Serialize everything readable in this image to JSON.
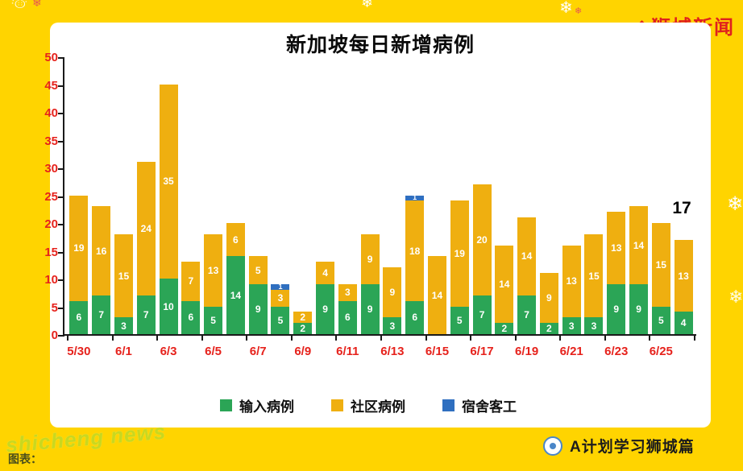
{
  "colors": {
    "background": "#FFD400",
    "panel": "#FFFFFF",
    "axis_labels": "#E6221C",
    "brand": "#E0201E",
    "annotation": "#000000"
  },
  "brand": {
    "name": "狮城新闻"
  },
  "chart_data": {
    "type": "bar",
    "stacked": true,
    "title": "新加坡每日新增病例",
    "ylim": [
      0,
      50
    ],
    "ytick_step": 5,
    "gridlines": false,
    "legend_position": "bottom",
    "x_tick_labels": [
      "5/30",
      "",
      "6/1",
      "",
      "6/3",
      "",
      "6/5",
      "",
      "6/7",
      "",
      "6/9",
      "",
      "6/11",
      "",
      "6/13",
      "",
      "6/15",
      "",
      "6/17",
      "",
      "6/19",
      "",
      "6/21",
      "",
      "6/23",
      "",
      "6/25",
      ""
    ],
    "series": [
      {
        "name": "输入病例",
        "color": "#2BA556",
        "values": [
          6,
          7,
          3,
          7,
          10,
          6,
          5,
          14,
          9,
          5,
          2,
          9,
          6,
          9,
          3,
          6,
          0,
          5,
          7,
          2,
          7,
          2,
          3,
          3,
          9,
          9,
          5,
          4
        ]
      },
      {
        "name": "社区病例",
        "color": "#EFAF10",
        "values": [
          19,
          16,
          15,
          24,
          35,
          7,
          13,
          6,
          5,
          3,
          2,
          4,
          3,
          9,
          9,
          18,
          14,
          19,
          20,
          14,
          14,
          9,
          13,
          15,
          13,
          14,
          15,
          13
        ]
      },
      {
        "name": "宿舍客工",
        "color": "#2F6FC0",
        "values": [
          0,
          0,
          0,
          0,
          0,
          0,
          0,
          0,
          0,
          1,
          0,
          0,
          0,
          0,
          0,
          1,
          0,
          0,
          0,
          0,
          0,
          0,
          0,
          0,
          0,
          0,
          0,
          0
        ]
      }
    ],
    "annotation": {
      "text": "17",
      "bar_index": 27
    }
  },
  "watermark": {
    "text": "shicheng news"
  },
  "footer": {
    "caption": "图表：",
    "account_label": "A计划学习狮城篇"
  },
  "decorations": {
    "snowflake": "❄",
    "snowman": "☃"
  }
}
